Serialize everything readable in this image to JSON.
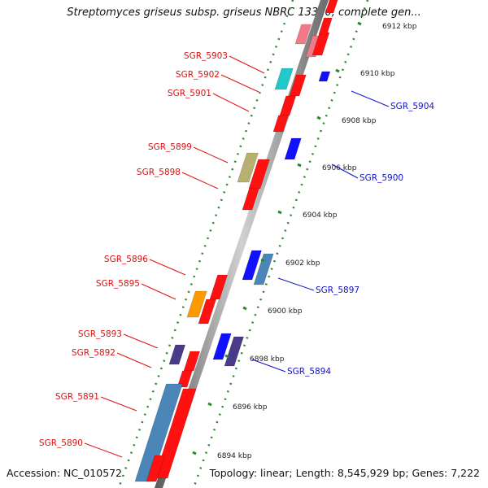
{
  "title": "Streptomyces griseus subsp. griseus NBRC 13350, complete gen...",
  "footer": {
    "accession": "Accession: NC_010572",
    "summary": "Topology: linear; Length: 8,545,929 bp; Genes: 7,222"
  },
  "ticks": [
    {
      "label": "6912 kbp",
      "kbp": 6912
    },
    {
      "label": "6910 kbp",
      "kbp": 6910
    },
    {
      "label": "6908 kbp",
      "kbp": 6908
    },
    {
      "label": "6906 kbp",
      "kbp": 6906
    },
    {
      "label": "6904 kbp",
      "kbp": 6904
    },
    {
      "label": "6902 kbp",
      "kbp": 6902
    },
    {
      "label": "6900 kbp",
      "kbp": 6900
    },
    {
      "label": "6898 kbp",
      "kbp": 6898
    },
    {
      "label": "6896 kbp",
      "kbp": 6896
    },
    {
      "label": "6894 kbp",
      "kbp": 6894
    }
  ],
  "genes_left": [
    {
      "label": "SGR_5903",
      "color": "#dd1111"
    },
    {
      "label": "SGR_5902",
      "color": "#dd1111"
    },
    {
      "label": "SGR_5901",
      "color": "#dd1111"
    },
    {
      "label": "SGR_5899",
      "color": "#dd1111"
    },
    {
      "label": "SGR_5898",
      "color": "#dd1111"
    },
    {
      "label": "SGR_5896",
      "color": "#dd1111"
    },
    {
      "label": "SGR_5895",
      "color": "#dd1111"
    },
    {
      "label": "SGR_5893",
      "color": "#dd1111"
    },
    {
      "label": "SGR_5892",
      "color": "#dd1111"
    },
    {
      "label": "SGR_5891",
      "color": "#dd1111"
    },
    {
      "label": "SGR_5890",
      "color": "#dd1111"
    }
  ],
  "genes_right": [
    {
      "label": "SGR_5904",
      "color": "#1111cc"
    },
    {
      "label": "SGR_5900",
      "color": "#1111cc"
    },
    {
      "label": "SGR_5897",
      "color": "#1111cc"
    },
    {
      "label": "SGR_5894",
      "color": "#1111cc"
    }
  ],
  "colors": {
    "forward": "#ff1111",
    "reverse": "#1111ff",
    "steel": "#4a86b8",
    "cyan": "#22c8cc",
    "olive": "#b8b070",
    "orange": "#ff9900",
    "purple": "#4a3a8a",
    "pink": "#f07a88",
    "axis": "#888888",
    "dots": "#2a8a2a"
  }
}
